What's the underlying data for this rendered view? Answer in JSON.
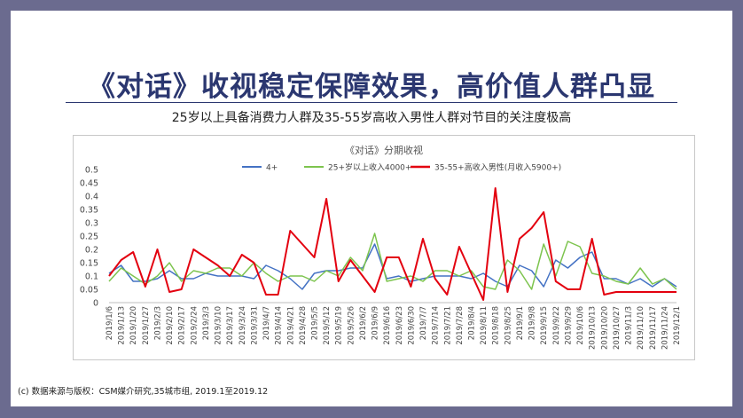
{
  "slide": {
    "title": "《对话》收视稳定保障效果，高价值人群凸显",
    "subtitle": "25岁以上具备消费力人群及35-55岁高收入男性人群对节目的关注度极高",
    "footnote": "(c) 数据来源与版权：CSM媒介研究,35城市组, 2019.1至2019.12"
  },
  "chart_data": {
    "type": "line",
    "title": "《对话》分期收视",
    "xlabel": "",
    "ylabel": "",
    "ylim": [
      0,
      0.5
    ],
    "yticks": [
      0,
      0.05,
      0.1,
      0.15,
      0.2,
      0.25,
      0.3,
      0.35,
      0.4,
      0.45,
      0.5
    ],
    "ytick_labels": [
      "0",
      "0.05",
      "0.1",
      "0.15",
      "0.2",
      "0.25",
      "0.3",
      "0.35",
      "0.4",
      "0.45",
      "0.5"
    ],
    "grid": false,
    "legend_position": "top",
    "categories": [
      "2019/1/6",
      "2019/1/13",
      "2019/1/20",
      "2019/1/27",
      "2019/2/3",
      "2019/2/10",
      "2019/2/17",
      "2019/2/24",
      "2019/3/3",
      "2019/3/10",
      "2019/3/17",
      "2019/3/24",
      "2019/3/31",
      "2019/4/7",
      "2019/4/14",
      "2019/4/21",
      "2019/4/28",
      "2019/5/5",
      "2019/5/12",
      "2019/5/19",
      "2019/5/26",
      "2019/6/2",
      "2019/6/9",
      "2019/6/16",
      "2019/6/23",
      "2019/6/30",
      "2019/7/7",
      "2019/7/14",
      "2019/7/21",
      "2019/7/28",
      "2019/8/4",
      "2019/8/11",
      "2019/8/18",
      "2019/8/25",
      "2019/9/1",
      "2019/9/8",
      "2019/9/15",
      "2019/9/22",
      "2019/9/29",
      "2019/10/6",
      "2019/10/13",
      "2019/10/20",
      "2019/10/27",
      "2019/11/3",
      "2019/11/10",
      "2019/11/17",
      "2019/11/24",
      "2019/12/1"
    ],
    "tick_labels": [
      "2019/1/6",
      "2019/1/13",
      "2019/1/20",
      "2019/1/27",
      "2019/2/3",
      "2019/2/10",
      "2019/2/17",
      "2019/2/24",
      "2019/3/3",
      "2019/3/10",
      "2019/3/17",
      "2019/3/24",
      "2019/3/31",
      "2019/4/7",
      "2019/4/14",
      "2019/4/21",
      "2019/4/28",
      "2019/5/5",
      "2019/5/12",
      "2019/5/19",
      "2019/5/26",
      "2019/6/2",
      "2019/6/9",
      "2019/6/16",
      "2019/6/23",
      "2019/6/30",
      "2019/7/7",
      "2019/7/14",
      "2019/7/21",
      "2019/7/28",
      "2019/8/4",
      "2019/8/11",
      "2019/8/18",
      "2019/8/25",
      "2019/9/1",
      "2019/9/8",
      "2019/9/15",
      "2019/9/22",
      "2019/9/29",
      "2019/10/6",
      "2019/10/13",
      "2019/10/20",
      "2019/10/27",
      "2019/11/3",
      "2019/11/10",
      "2019/11/17",
      "2019/11/24",
      "2019/12/1"
    ],
    "series": [
      {
        "name": "4+",
        "color": "#4472c4",
        "stroke": 1.5,
        "values": [
          0.11,
          0.14,
          0.08,
          0.08,
          0.09,
          0.12,
          0.09,
          0.09,
          0.11,
          0.1,
          0.1,
          0.1,
          0.09,
          0.14,
          0.12,
          0.09,
          0.05,
          0.11,
          0.12,
          0.12,
          0.13,
          0.13,
          0.22,
          0.09,
          0.1,
          0.08,
          0.09,
          0.1,
          0.1,
          0.1,
          0.09,
          0.11,
          0.08,
          0.06,
          0.14,
          0.12,
          0.06,
          0.16,
          0.13,
          0.17,
          0.19,
          0.09,
          0.09,
          0.07,
          0.09,
          0.06,
          0.09,
          0.06
        ]
      },
      {
        "name": "25+岁以上收入4000+",
        "color": "#7dc44e",
        "stroke": 1.5,
        "values": [
          0.08,
          0.13,
          0.1,
          0.07,
          0.1,
          0.15,
          0.08,
          0.12,
          0.11,
          0.13,
          0.13,
          0.1,
          0.15,
          0.11,
          0.08,
          0.1,
          0.1,
          0.08,
          0.12,
          0.1,
          0.17,
          0.12,
          0.26,
          0.08,
          0.09,
          0.1,
          0.08,
          0.12,
          0.12,
          0.1,
          0.12,
          0.06,
          0.05,
          0.16,
          0.12,
          0.05,
          0.22,
          0.1,
          0.23,
          0.21,
          0.11,
          0.1,
          0.08,
          0.07,
          0.13,
          0.07,
          0.09,
          0.05
        ]
      },
      {
        "name": "35-55+高收入男性(月收入5900+)",
        "color": "#e3000f",
        "stroke": 2,
        "values": [
          0.1,
          0.16,
          0.19,
          0.06,
          0.2,
          0.04,
          0.05,
          0.2,
          0.17,
          0.14,
          0.1,
          0.18,
          0.15,
          0.03,
          0.03,
          0.27,
          0.22,
          0.17,
          0.39,
          0.08,
          0.16,
          0.1,
          0.04,
          0.17,
          0.17,
          0.06,
          0.24,
          0.09,
          0.03,
          0.21,
          0.11,
          0.01,
          0.43,
          0.04,
          0.24,
          0.28,
          0.34,
          0.08,
          0.05,
          0.05,
          0.24,
          0.03,
          0.04,
          0.04,
          0.04,
          0.04,
          0.04,
          0.04
        ]
      }
    ]
  }
}
